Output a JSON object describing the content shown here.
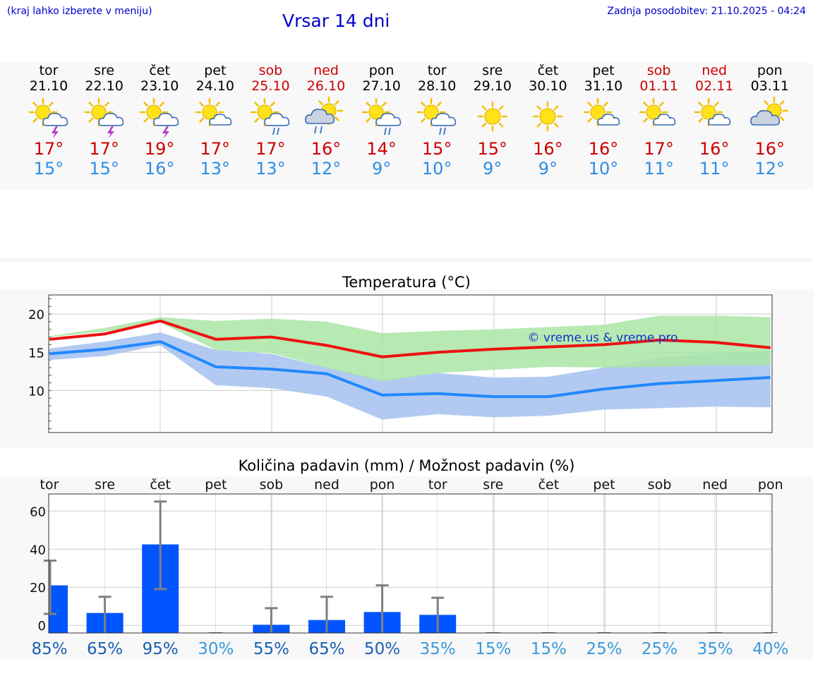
{
  "header": {
    "hint": "(kraj lahko izberete v meniju)",
    "title": "Vrsar 14 dni",
    "updated": "Zadnja posodobitev: 21.10.2025 - 04:24"
  },
  "days": [
    {
      "name": "tor",
      "date": "21.10",
      "weekend": false,
      "icon": "sun-cloud-thunder-icon",
      "tmax": "17°",
      "tmin": "15°"
    },
    {
      "name": "sre",
      "date": "22.10",
      "weekend": false,
      "icon": "sun-cloud-thunder-icon",
      "tmax": "17°",
      "tmin": "15°"
    },
    {
      "name": "čet",
      "date": "23.10",
      "weekend": false,
      "icon": "sun-cloud-thunder-icon",
      "tmax": "19°",
      "tmin": "16°"
    },
    {
      "name": "pet",
      "date": "24.10",
      "weekend": false,
      "icon": "sun-small-cloud-icon",
      "tmax": "17°",
      "tmin": "13°"
    },
    {
      "name": "sob",
      "date": "25.10",
      "weekend": true,
      "icon": "sun-cloud-rain-icon",
      "tmax": "17°",
      "tmin": "13°"
    },
    {
      "name": "ned",
      "date": "26.10",
      "weekend": true,
      "icon": "cloud-sun-rain-icon",
      "tmax": "16°",
      "tmin": "12°"
    },
    {
      "name": "pon",
      "date": "27.10",
      "weekend": false,
      "icon": "sun-cloud-rain-icon",
      "tmax": "14°",
      "tmin": "9°"
    },
    {
      "name": "tor",
      "date": "28.10",
      "weekend": false,
      "icon": "sun-cloud-rain-icon",
      "tmax": "15°",
      "tmin": "10°"
    },
    {
      "name": "sre",
      "date": "29.10",
      "weekend": false,
      "icon": "sun-icon",
      "tmax": "15°",
      "tmin": "9°"
    },
    {
      "name": "čet",
      "date": "30.10",
      "weekend": false,
      "icon": "sun-icon",
      "tmax": "16°",
      "tmin": "9°"
    },
    {
      "name": "pet",
      "date": "31.10",
      "weekend": false,
      "icon": "sun-small-cloud-icon",
      "tmax": "16°",
      "tmin": "10°"
    },
    {
      "name": "sob",
      "date": "01.11",
      "weekend": true,
      "icon": "sun-small-cloud-icon",
      "tmax": "17°",
      "tmin": "11°"
    },
    {
      "name": "ned",
      "date": "02.11",
      "weekend": true,
      "icon": "sun-small-cloud-icon",
      "tmax": "16°",
      "tmin": "11°"
    },
    {
      "name": "pon",
      "date": "03.11",
      "weekend": false,
      "icon": "cloud-sun-icon",
      "tmax": "16°",
      "tmin": "12°"
    }
  ],
  "colors": {
    "max_line": "#ee1111",
    "min_line": "#2288ff",
    "max_band": "#a9e6a5",
    "min_band": "#aac4f0",
    "overlap_band": "#7cc4a8",
    "bar": "#0055ff",
    "errbar": "#808080",
    "pct_dark": "#1a5fb0",
    "pct_light": "#3a9ad9"
  },
  "chart_data": [
    {
      "type": "line",
      "title": "Temperatura (°C)",
      "watermark": "© vreme.us & vreme.pro",
      "ylim": [
        4.5,
        22.5
      ],
      "yticks": [
        10,
        15,
        20
      ],
      "x": [
        0,
        1,
        2,
        3,
        4,
        5,
        6,
        7,
        8,
        9,
        10,
        11,
        12,
        13
      ],
      "series": [
        {
          "key": "max",
          "values": [
            16.7,
            17.4,
            19.1,
            16.7,
            17.0,
            15.9,
            14.4,
            15.0,
            15.4,
            15.7,
            16.0,
            16.6,
            16.3,
            15.6
          ],
          "band_low": [
            17.0,
            17.7,
            18.9,
            15.3,
            14.9,
            13.0,
            11.2,
            12.3,
            12.7,
            13.1,
            13.0,
            13.1,
            13.3,
            13.3
          ],
          "band_high": [
            17.1,
            18.2,
            19.6,
            19.1,
            19.4,
            19.0,
            17.5,
            17.8,
            18.0,
            18.3,
            18.6,
            19.8,
            19.8,
            19.6
          ]
        },
        {
          "key": "min",
          "values": [
            14.8,
            15.4,
            16.4,
            13.1,
            12.8,
            12.2,
            9.4,
            9.6,
            9.2,
            9.2,
            10.2,
            10.9,
            11.3,
            11.7
          ],
          "band_low": [
            14.0,
            14.5,
            15.9,
            10.7,
            10.3,
            9.2,
            6.2,
            6.9,
            6.5,
            6.7,
            7.5,
            7.7,
            7.9,
            7.8
          ],
          "band_high": [
            15.5,
            16.4,
            17.6,
            15.3,
            14.8,
            13.0,
            11.4,
            12.3,
            11.7,
            11.8,
            13.0,
            14.3,
            14.9,
            15.2
          ]
        }
      ]
    },
    {
      "type": "bar",
      "title": "Količina padavin (mm) / Možnost padavin (%)",
      "categories": [
        "tor",
        "sre",
        "čet",
        "pet",
        "sob",
        "ned",
        "pon",
        "tor",
        "sre",
        "čet",
        "pet",
        "sob",
        "ned",
        "pon"
      ],
      "ylim": [
        -4,
        69
      ],
      "yticks": [
        0,
        20,
        40,
        60
      ],
      "values": [
        21,
        6.5,
        42.5,
        0,
        0.3,
        2.8,
        7,
        5.5,
        0,
        0,
        0,
        0,
        0,
        0
      ],
      "err_low": [
        6,
        0,
        19,
        0,
        0,
        0,
        0,
        0,
        0,
        0,
        0,
        0,
        0,
        0
      ],
      "err_high": [
        34,
        15,
        65,
        0,
        9,
        15,
        21,
        14.5,
        0,
        0,
        0,
        0,
        0,
        0
      ],
      "probability": [
        "85%",
        "65%",
        "95%",
        "30%",
        "55%",
        "65%",
        "50%",
        "35%",
        "15%",
        "15%",
        "25%",
        "25%",
        "35%",
        "40%"
      ],
      "probability_high": [
        true,
        true,
        true,
        false,
        true,
        true,
        true,
        false,
        false,
        false,
        false,
        false,
        false,
        false
      ]
    }
  ]
}
